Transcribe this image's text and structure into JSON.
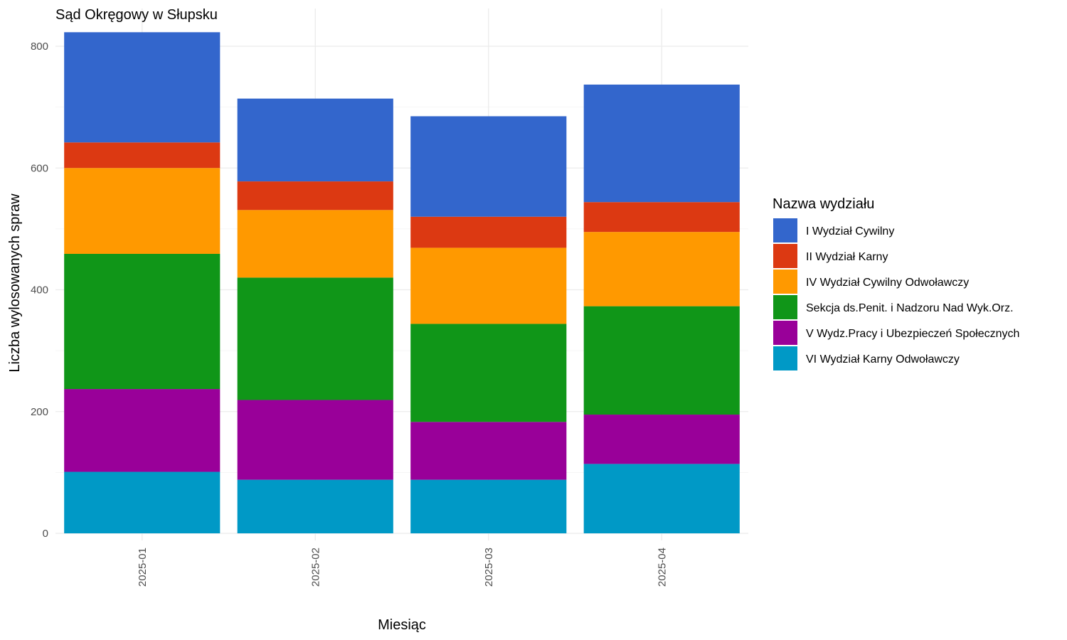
{
  "chart_data": {
    "type": "bar",
    "stacked": true,
    "title": "Sąd Okręgowy w Słupsku",
    "xlabel": "Miesiąc",
    "ylabel": "Liczba wylosowanych spraw",
    "ylim": [
      0,
      820
    ],
    "yticks": [
      0,
      200,
      400,
      600,
      800
    ],
    "grid": true,
    "legend_title": "Nazwa wydziału",
    "legend_position": "right",
    "categories": [
      "2025-01",
      "2025-02",
      "2025-03",
      "2025-04"
    ],
    "series": [
      {
        "name": "VI Wydział Karny Odwoławczy",
        "color": "#0099C6",
        "values": [
          101,
          88,
          88,
          114
        ]
      },
      {
        "name": "V Wydz.Pracy i Ubezpieczeń Społecznych",
        "color": "#990099",
        "values": [
          136,
          131,
          95,
          81
        ]
      },
      {
        "name": "Sekcja ds.Penit. i Nadzoru Nad Wyk.Orz.",
        "color": "#109618",
        "values": [
          222,
          201,
          161,
          178
        ]
      },
      {
        "name": "IV Wydział Cywilny Odwoławczy",
        "color": "#FF9900",
        "values": [
          141,
          111,
          125,
          122
        ]
      },
      {
        "name": "II Wydział Karny",
        "color": "#DC3912",
        "values": [
          42,
          47,
          51,
          49
        ]
      },
      {
        "name": "I Wydział Cywilny",
        "color": "#3366CC",
        "values": [
          181,
          136,
          165,
          193
        ]
      }
    ],
    "legend_order": [
      "I Wydział Cywilny",
      "II Wydział Karny",
      "IV Wydział Cywilny Odwoławczy",
      "Sekcja ds.Penit. i Nadzoru Nad Wyk.Orz.",
      "V Wydz.Pracy i Ubezpieczeń Społecznych",
      "VI Wydział Karny Odwoławczy"
    ]
  }
}
